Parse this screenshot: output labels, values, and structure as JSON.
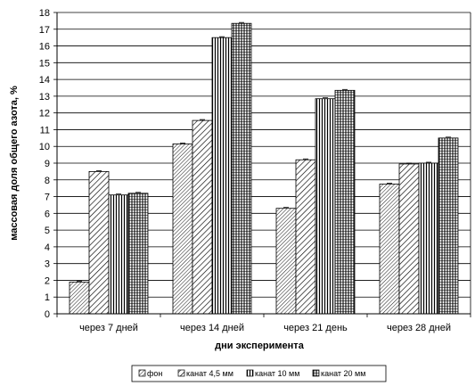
{
  "chart_data": {
    "type": "bar",
    "title": "",
    "xlabel": "дни эксперимента",
    "ylabel": "массовая доля общего азота, %",
    "categories": [
      "через 7 дней",
      "через 14 дней",
      "через 21 день",
      "через 28 дней"
    ],
    "series": [
      {
        "name": "фон",
        "values": [
          1.9,
          10.15,
          6.3,
          7.75
        ],
        "pattern": "diag-fine"
      },
      {
        "name": "канат 4,5 мм",
        "values": [
          8.5,
          11.55,
          9.2,
          8.95
        ],
        "pattern": "diag-wide"
      },
      {
        "name": "канат 10 мм",
        "values": [
          7.1,
          16.5,
          12.85,
          9.0
        ],
        "pattern": "vertical"
      },
      {
        "name": "канат 20 мм",
        "values": [
          7.2,
          17.35,
          13.35,
          10.5
        ],
        "pattern": "vertical-dense"
      }
    ],
    "ylim": [
      0,
      18
    ],
    "ytick_step": 1,
    "grid": true,
    "legend_position": "bottom",
    "colors": {
      "bar_fill": "#ffffff",
      "bar_stroke": "#000000",
      "grid": "#000000",
      "axis": "#000000"
    }
  }
}
